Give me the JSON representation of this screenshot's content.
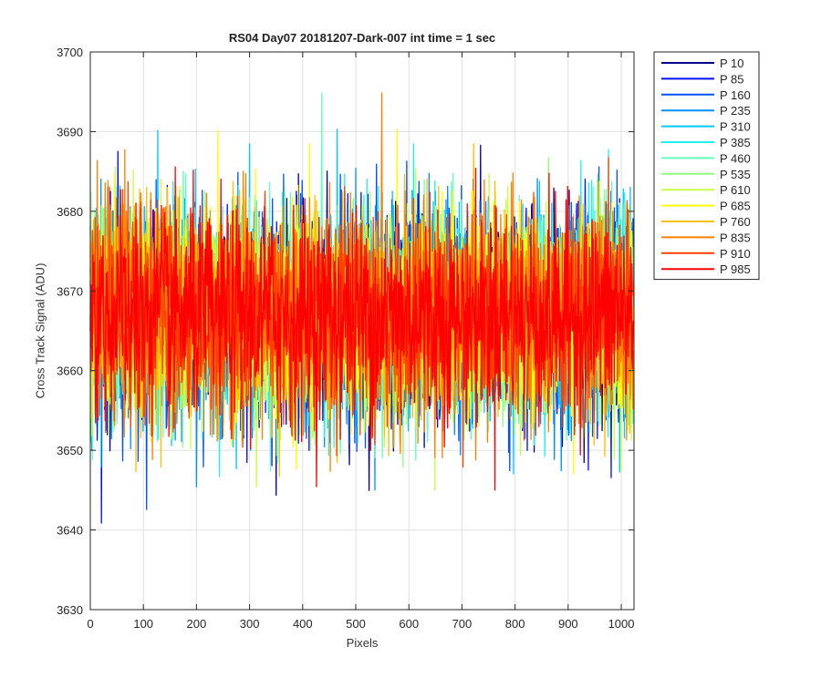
{
  "chart_data": {
    "type": "line",
    "title": "RS04 Day07 20181207-Dark-007 int time = 1 sec",
    "xlabel": "Pixels",
    "ylabel": "Cross Track Signal (ADU)",
    "xlim": [
      0,
      1024
    ],
    "ylim": [
      3630,
      3700
    ],
    "x_ticks": [
      0,
      100,
      200,
      300,
      400,
      500,
      600,
      700,
      800,
      900,
      1000
    ],
    "y_ticks": [
      3630,
      3640,
      3650,
      3660,
      3670,
      3680,
      3690,
      3700
    ],
    "grid": true,
    "legend_position": "outside-right",
    "noise_mean": 3667,
    "noise_range": [
      3635,
      3695
    ],
    "series": [
      {
        "name": "P 10",
        "color": "#00008F"
      },
      {
        "name": "P 85",
        "color": "#0010FF"
      },
      {
        "name": "P 160",
        "color": "#0050FF"
      },
      {
        "name": "P 235",
        "color": "#0090FF"
      },
      {
        "name": "P 310",
        "color": "#00C8FF"
      },
      {
        "name": "P 385",
        "color": "#20F0F0"
      },
      {
        "name": "P 460",
        "color": "#60FFC0"
      },
      {
        "name": "P 535",
        "color": "#90FF80"
      },
      {
        "name": "P 610",
        "color": "#C8FF40"
      },
      {
        "name": "P 685",
        "color": "#FFFF00"
      },
      {
        "name": "P 760",
        "color": "#FFC000"
      },
      {
        "name": "P 835",
        "color": "#FF8000"
      },
      {
        "name": "P 910",
        "color": "#FF4000"
      },
      {
        "name": "P 985",
        "color": "#FF0000"
      }
    ]
  }
}
